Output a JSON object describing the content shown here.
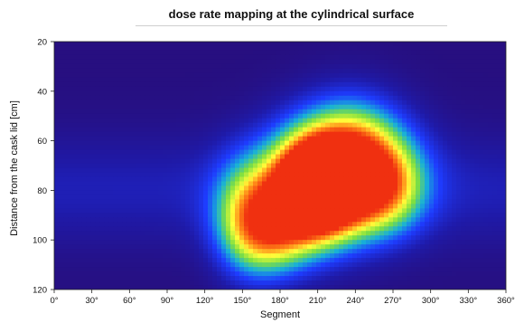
{
  "chart_data": {
    "type": "heatmap",
    "title": "dose rate mapping at the cylindrical surface",
    "xlabel": "Segment",
    "ylabel": "Distance from the cask lid [cm]",
    "xlim": [
      0,
      360
    ],
    "ylim": [
      20,
      120
    ],
    "y_inverted": true,
    "x_ticks": [
      0,
      30,
      60,
      90,
      120,
      150,
      180,
      210,
      240,
      270,
      300,
      330,
      360
    ],
    "x_tick_labels": [
      "0°",
      "30°",
      "60°",
      "90°",
      "120°",
      "150°",
      "180°",
      "210°",
      "240°",
      "270°",
      "300°",
      "330°",
      "360°"
    ],
    "y_ticks": [
      20,
      40,
      60,
      80,
      100,
      120
    ],
    "y_tick_labels": [
      "20",
      "40",
      "60",
      "80",
      "100",
      "120"
    ],
    "colorscale": [
      "#2a0a6e",
      "#1f1aa8",
      "#1e3cff",
      "#18b0d8",
      "#7fe040",
      "#ffff3a",
      "#ff8a18",
      "#f03010"
    ],
    "hotspots": [
      {
        "x": 210,
        "y": 78,
        "intensity": 1.0,
        "sx": 18,
        "sy": 11
      },
      {
        "x": 225,
        "y": 72,
        "intensity": 0.85,
        "sx": 35,
        "sy": 16
      },
      {
        "x": 195,
        "y": 86,
        "intensity": 0.75,
        "sx": 30,
        "sy": 14
      },
      {
        "x": 240,
        "y": 68,
        "intensity": 0.55,
        "sx": 28,
        "sy": 16
      },
      {
        "x": 170,
        "y": 98,
        "intensity": 0.55,
        "sx": 22,
        "sy": 12
      },
      {
        "x": 265,
        "y": 80,
        "intensity": 0.42,
        "sx": 22,
        "sy": 12
      },
      {
        "x": 150,
        "y": 90,
        "intensity": 0.32,
        "sx": 18,
        "sy": 16
      }
    ],
    "background": {
      "base": 0.05,
      "band_y": 80,
      "band_amp": 0.14,
      "band_sigma": 16
    }
  }
}
